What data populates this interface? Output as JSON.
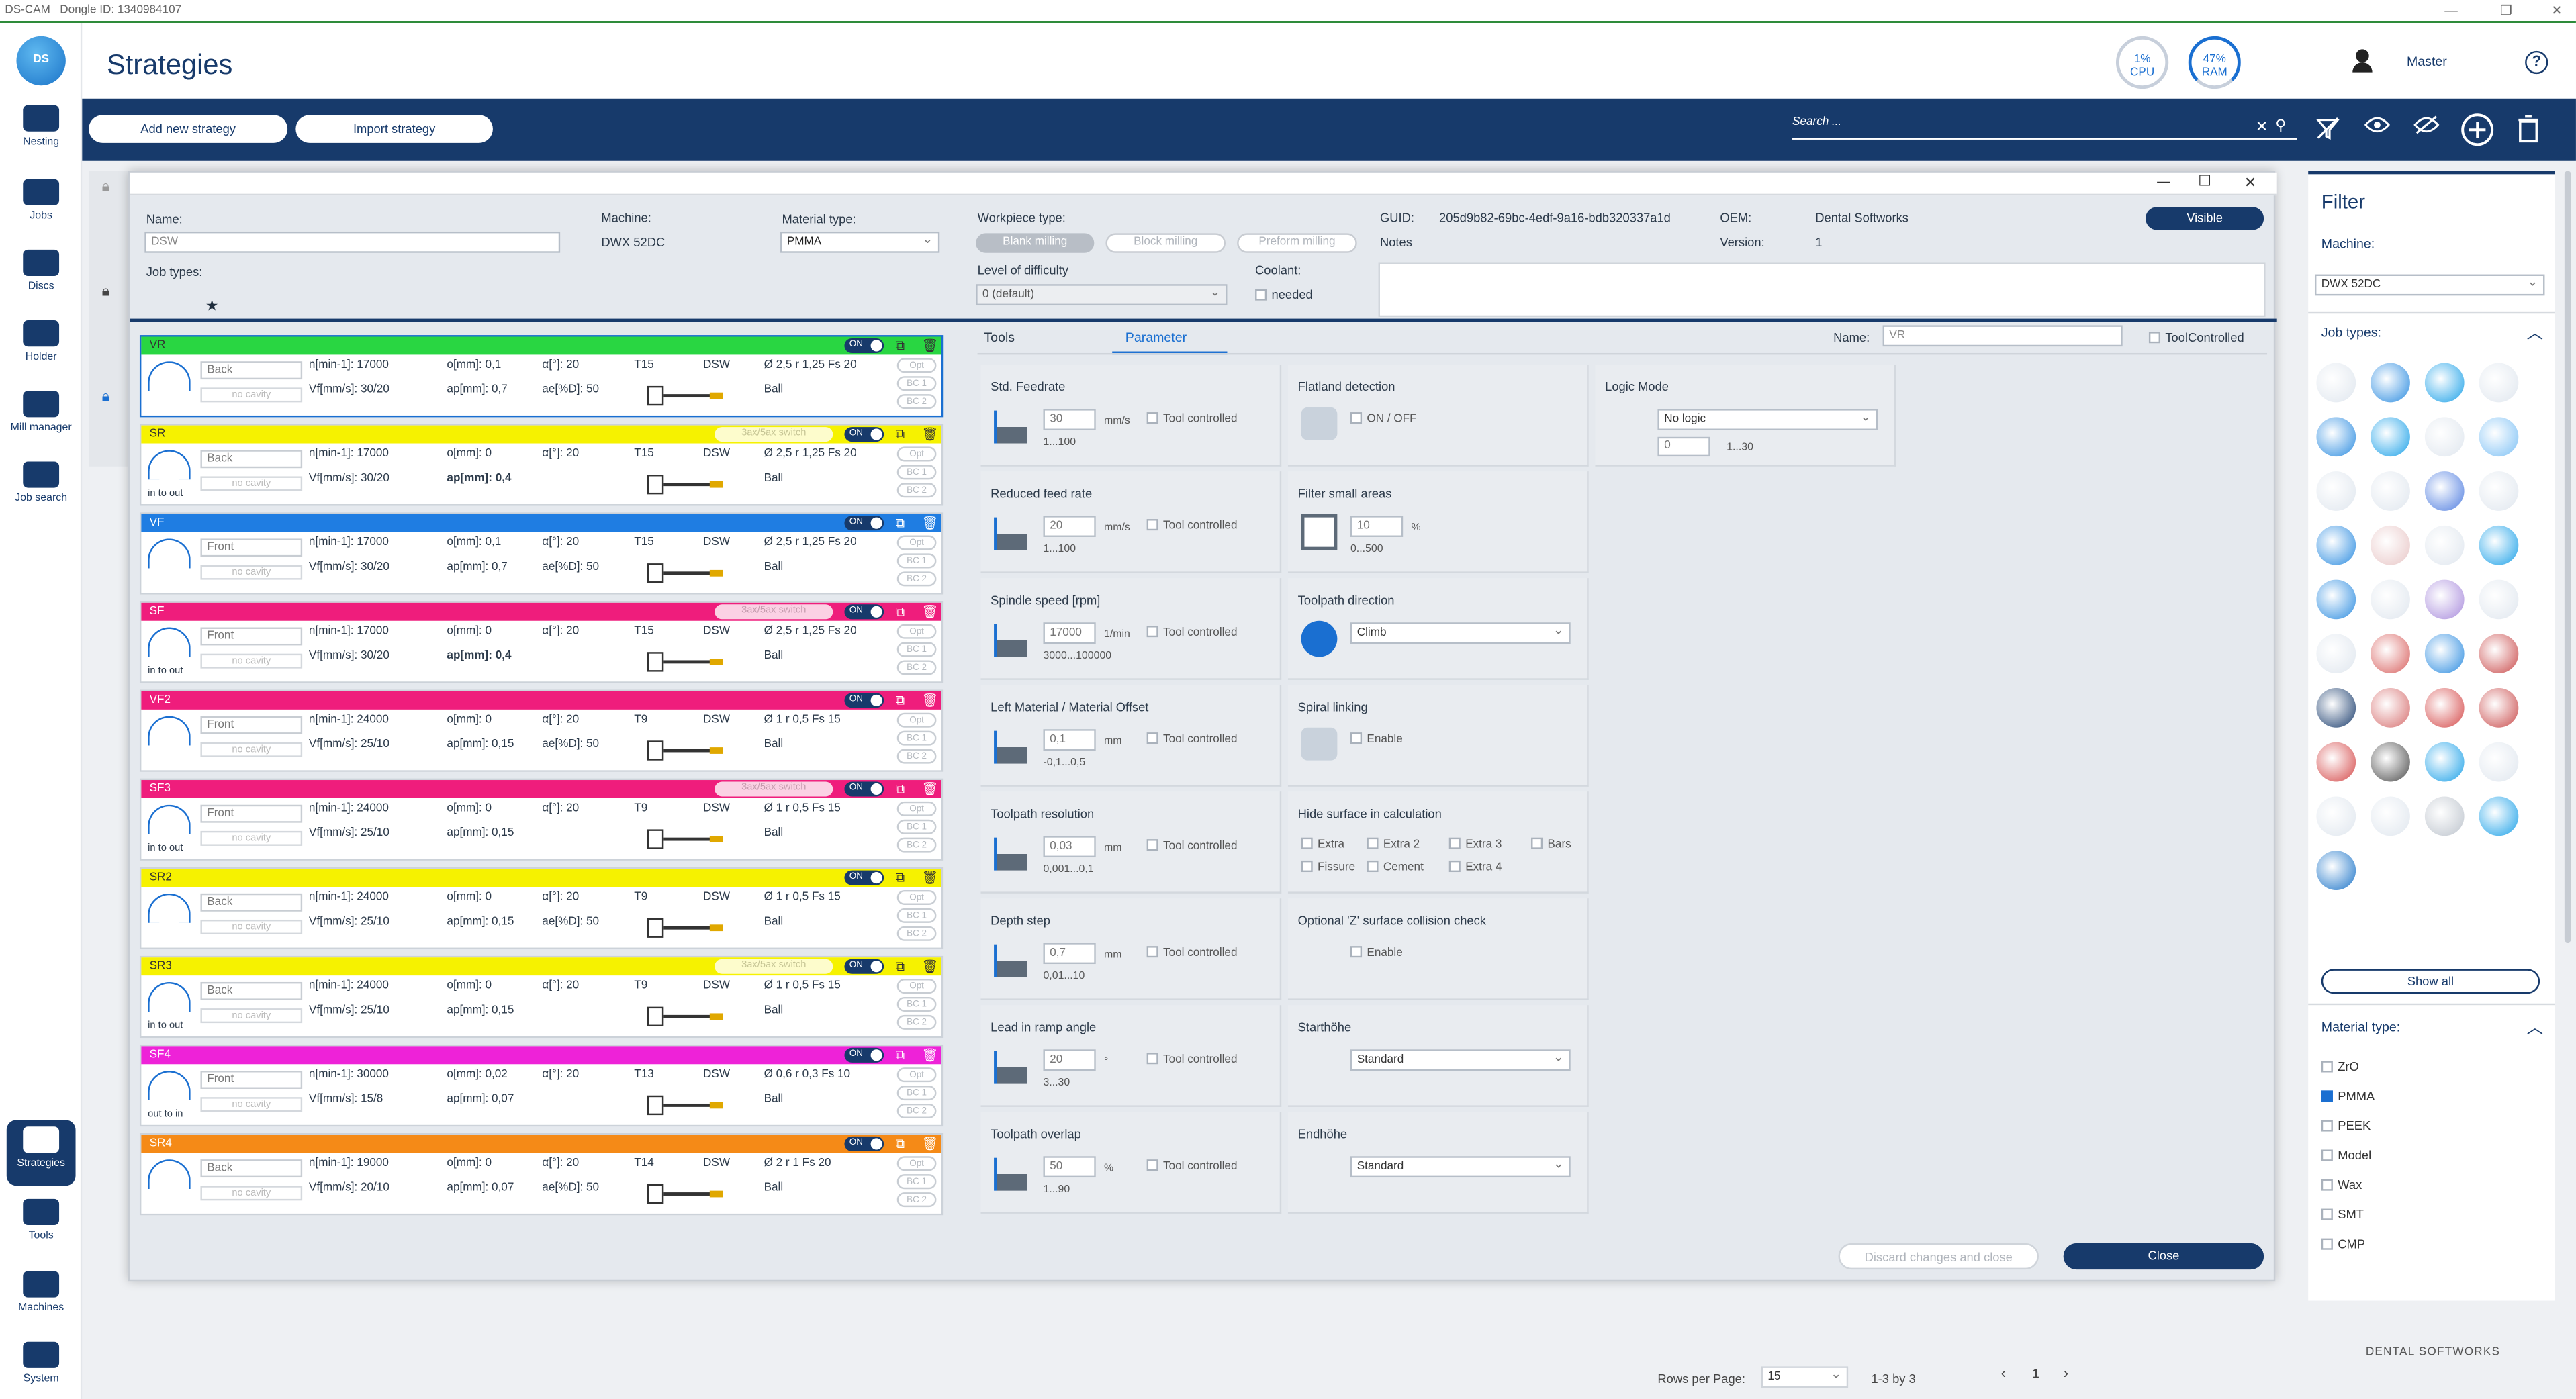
{
  "window": {
    "app": "DS-CAM",
    "dongle": "Dongle ID: 1340984107"
  },
  "nav": [
    {
      "label": "Nesting",
      "icon": "nesting-icon"
    },
    {
      "label": "Jobs",
      "icon": "jobs-icon"
    },
    {
      "label": "Discs",
      "icon": "discs-icon"
    },
    {
      "label": "Holder",
      "icon": "holder-icon"
    },
    {
      "label": "Mill manager",
      "icon": "mill-manager-icon"
    },
    {
      "label": "Job search",
      "icon": "job-search-icon"
    },
    {
      "label": "Strategies",
      "icon": "strategies-icon"
    },
    {
      "label": "Tools",
      "icon": "tools-icon"
    },
    {
      "label": "Machines",
      "icon": "machines-icon"
    },
    {
      "label": "System",
      "icon": "system-icon"
    }
  ],
  "header": {
    "title": "Strategies",
    "cpu_value": "1%",
    "cpu_label": "CPU",
    "ram_value": "47%",
    "ram_label": "RAM",
    "user": "Master"
  },
  "toolbar": {
    "add_strategy": "Add new strategy",
    "import_strategy": "Import strategy",
    "search_placeholder": "Search ..."
  },
  "dialog": {
    "name_label": "Name:",
    "name_value": "DSW",
    "machine_label": "Machine:",
    "machine_value": "DWX 52DC",
    "material_label": "Material type:",
    "material_value": "PMMA",
    "job_types_label": "Job types:",
    "workpiece_label": "Workpiece type:",
    "workpiece_options": [
      "Blank milling",
      "Block milling",
      "Preform milling"
    ],
    "difficulty_label": "Level of difficulty",
    "difficulty_value": "0 (default)",
    "coolant_label": "Coolant:",
    "coolant_value": "needed",
    "guid_label": "GUID:",
    "guid_value": "205d9b82-69bc-4edf-9a16-bdb320337a1d",
    "notes_label": "Notes",
    "oem_label": "OEM:",
    "oem_value": "Dental Softworks",
    "version_label": "Version:",
    "version_value": "1",
    "visible_button": "Visible",
    "discard_button": "Discard changes and close",
    "close_button": "Close"
  },
  "strategies": [
    {
      "name": "VR",
      "color": "#29d642",
      "dir": "Back",
      "n": "n[min-1]: 17000",
      "o": "o[mm]: 0,1",
      "alpha": "α[°]: 20",
      "tool": "T15",
      "src": "DSW",
      "dia": "Ø 2,5 r 1,25 Fs 20",
      "vf": "Vf[mm/s]: 30/20",
      "ap": "ap[mm]: 0,7",
      "ae": "ae[%D]: 50",
      "shape": "Ball",
      "switch": false,
      "inout": ""
    },
    {
      "name": "SR",
      "color": "#f6f200",
      "dir": "Back",
      "n": "n[min-1]: 17000",
      "o": "o[mm]: 0",
      "alpha": "α[°]: 20",
      "tool": "T15",
      "src": "DSW",
      "dia": "Ø 2,5 r 1,25 Fs 20",
      "vf": "Vf[mm/s]: 30/20",
      "ap": "ap[mm]: 0,4",
      "ae": "",
      "shape": "Ball",
      "switch": true,
      "inout": "in to out"
    },
    {
      "name": "VF",
      "color": "#1f7de2",
      "dir": "Front",
      "n": "n[min-1]: 17000",
      "o": "o[mm]: 0,1",
      "alpha": "α[°]: 20",
      "tool": "T15",
      "src": "DSW",
      "dia": "Ø 2,5 r 1,25 Fs 20",
      "vf": "Vf[mm/s]: 30/20",
      "ap": "ap[mm]: 0,7",
      "ae": "ae[%D]: 50",
      "shape": "Ball",
      "switch": false,
      "inout": ""
    },
    {
      "name": "SF",
      "color": "#ef1d7c",
      "dir": "Front",
      "n": "n[min-1]: 17000",
      "o": "o[mm]: 0",
      "alpha": "α[°]: 20",
      "tool": "T15",
      "src": "DSW",
      "dia": "Ø 2,5 r 1,25 Fs 20",
      "vf": "Vf[mm/s]: 30/20",
      "ap": "ap[mm]: 0,4",
      "ae": "",
      "shape": "Ball",
      "switch": true,
      "inout": "in to out"
    },
    {
      "name": "VF2",
      "color": "#ef1d7c",
      "dir": "Front",
      "n": "n[min-1]: 24000",
      "o": "o[mm]: 0",
      "alpha": "α[°]: 20",
      "tool": "T9",
      "src": "DSW",
      "dia": "Ø 1 r 0,5 Fs 15",
      "vf": "Vf[mm/s]: 25/10",
      "ap": "ap[mm]: 0,15",
      "ae": "ae[%D]: 50",
      "shape": "Ball",
      "switch": false,
      "inout": ""
    },
    {
      "name": "SF3",
      "color": "#ef1d7c",
      "dir": "Front",
      "n": "n[min-1]: 24000",
      "o": "o[mm]: 0",
      "alpha": "α[°]: 20",
      "tool": "T9",
      "src": "DSW",
      "dia": "Ø 1 r 0,5 Fs 15",
      "vf": "Vf[mm/s]: 25/10",
      "ap": "ap[mm]: 0,15",
      "ae": "",
      "shape": "Ball",
      "switch": true,
      "inout": "in to out"
    },
    {
      "name": "SR2",
      "color": "#f6f200",
      "dir": "Back",
      "n": "n[min-1]: 24000",
      "o": "o[mm]: 0",
      "alpha": "α[°]: 20",
      "tool": "T9",
      "src": "DSW",
      "dia": "Ø 1 r 0,5 Fs 15",
      "vf": "Vf[mm/s]: 25/10",
      "ap": "ap[mm]: 0,15",
      "ae": "ae[%D]: 50",
      "shape": "Ball",
      "switch": false,
      "inout": ""
    },
    {
      "name": "SR3",
      "color": "#f6f200",
      "dir": "Back",
      "n": "n[min-1]: 24000",
      "o": "o[mm]: 0",
      "alpha": "α[°]: 20",
      "tool": "T9",
      "src": "DSW",
      "dia": "Ø 1 r 0,5 Fs 15",
      "vf": "Vf[mm/s]: 25/10",
      "ap": "ap[mm]: 0,15",
      "ae": "",
      "shape": "Ball",
      "switch": true,
      "inout": "in to out"
    },
    {
      "name": "SF4",
      "color": "#ee22d8",
      "dir": "Front",
      "n": "n[min-1]: 30000",
      "o": "o[mm]: 0,02",
      "alpha": "α[°]: 20",
      "tool": "T13",
      "src": "DSW",
      "dia": "Ø 0,6 r 0,3 Fs 10",
      "vf": "Vf[mm/s]: 15/8",
      "ap": "ap[mm]: 0,07",
      "ae": "",
      "shape": "Ball",
      "switch": false,
      "inout": "out to in"
    },
    {
      "name": "SR4",
      "color": "#f58a17",
      "dir": "Back",
      "n": "n[min-1]: 19000",
      "o": "o[mm]: 0",
      "alpha": "α[°]: 20",
      "tool": "T14",
      "src": "DSW",
      "dia": "Ø 2 r 1 Fs 20",
      "vf": "Vf[mm/s]: 20/10",
      "ap": "ap[mm]: 0,07",
      "ae": "ae[%D]: 50",
      "shape": "Ball",
      "switch": false,
      "inout": ""
    }
  ],
  "strategy_common": {
    "no_cavity": "no cavity",
    "switch": "3ax/5ax switch",
    "on": "ON",
    "opt": "Opt",
    "bc1": "BC 1",
    "bc2": "BC 2"
  },
  "tabs": {
    "tools": "Tools",
    "parameter": "Parameter",
    "name_label": "Name:",
    "name_value": "VR",
    "tool_controlled": "ToolControlled"
  },
  "params": {
    "feedrate": {
      "title": "Std. Feedrate",
      "value": "30",
      "unit": "mm/s",
      "range": "1...100"
    },
    "reduced": {
      "title": "Reduced feed rate",
      "value": "20",
      "unit": "mm/s",
      "range": "1...100"
    },
    "spindle": {
      "title": "Spindle speed [rpm]",
      "value": "17000",
      "unit": "1/min",
      "range": "3000...100000"
    },
    "offset": {
      "title": "Left Material / Material Offset",
      "value": "0,1",
      "unit": "mm",
      "range": "-0,1...0,5"
    },
    "resolution": {
      "title": "Toolpath resolution",
      "value": "0,03",
      "unit": "mm",
      "range": "0,001...0,1"
    },
    "depth": {
      "title": "Depth step",
      "value": "0,7",
      "unit": "mm",
      "range": "0,01...10"
    },
    "ramp": {
      "title": "Lead in ramp angle",
      "value": "20",
      "unit": "°",
      "range": "3...30"
    },
    "overlap": {
      "title": "Toolpath overlap",
      "value": "50",
      "unit": "%",
      "range": "1...90"
    },
    "tool_controlled": "Tool controlled",
    "flatland": {
      "title": "Flatland detection",
      "option": "ON / OFF"
    },
    "small": {
      "title": "Filter small areas",
      "value": "10",
      "unit": "%",
      "range": "0...500"
    },
    "direction": {
      "title": "Toolpath direction",
      "value": "Climb"
    },
    "spiral": {
      "title": "Spiral linking",
      "option": "Enable"
    },
    "hide": {
      "title": "Hide surface in calculation",
      "options": [
        "Extra",
        "Extra 2",
        "Extra 3",
        "Bars",
        "Fissure",
        "Cement",
        "Extra 4"
      ]
    },
    "zcheck": {
      "title": "Optional 'Z' surface collision check",
      "option": "Enable"
    },
    "start": {
      "title": "Starthöhe",
      "value": "Standard"
    },
    "end": {
      "title": "Endhöhe",
      "value": "Standard"
    },
    "logic": {
      "title": "Logic Mode",
      "value": "No logic",
      "input": "0",
      "range": "1...30"
    }
  },
  "filter": {
    "title": "Filter",
    "machine_label": "Machine:",
    "machine_value": "DWX 52DC",
    "job_types_label": "Job types:",
    "show_all": "Show all",
    "material_label": "Material type:",
    "materials": [
      {
        "name": "ZrO",
        "checked": false
      },
      {
        "name": "PMMA",
        "checked": true
      },
      {
        "name": "PEEK",
        "checked": false
      },
      {
        "name": "Model",
        "checked": false
      },
      {
        "name": "Wax",
        "checked": false
      },
      {
        "name": "SMT",
        "checked": false
      },
      {
        "name": "CMP",
        "checked": false
      }
    ]
  },
  "pagination": {
    "rows_label": "Rows per Page:",
    "rows_value": "15",
    "range": "1-3 by 3",
    "page": "1"
  },
  "brand": "DENTAL SOFTWORKS"
}
